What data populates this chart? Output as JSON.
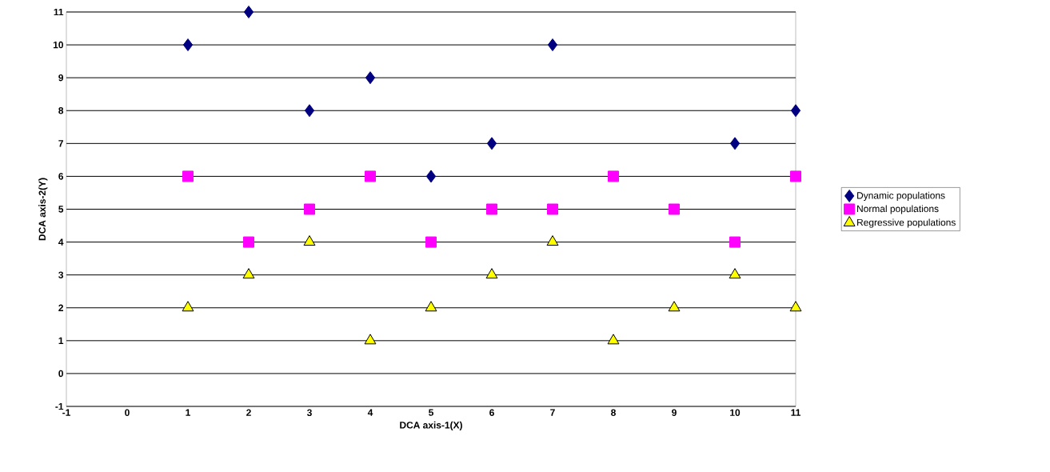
{
  "chart_data": {
    "type": "scatter",
    "xlabel": "DCA axis-1(X)",
    "ylabel": "DCA axis-2(Y)",
    "xlim": [
      -1,
      11
    ],
    "ylim": [
      -1,
      11
    ],
    "xticks": [
      -1,
      0,
      1,
      2,
      3,
      4,
      5,
      6,
      7,
      8,
      9,
      10,
      11
    ],
    "yticks": [
      -1,
      0,
      1,
      2,
      3,
      4,
      5,
      6,
      7,
      8,
      9,
      10,
      11
    ],
    "grid": "y",
    "legend": "right",
    "series": [
      {
        "name": "Dynamic populations",
        "color": "#000080",
        "marker": "diamond",
        "x": [
          1,
          2,
          3,
          4,
          5,
          6,
          7,
          10,
          11
        ],
        "values": [
          10,
          11,
          8,
          9,
          6,
          7,
          10,
          7,
          8
        ]
      },
      {
        "name": "Normal populations",
        "color": "#ff00ff",
        "marker": "square",
        "x": [
          1,
          2,
          3,
          4,
          5,
          6,
          7,
          8,
          9,
          10,
          11
        ],
        "values": [
          6,
          4,
          5,
          6,
          4,
          5,
          5,
          6,
          5,
          4,
          6
        ]
      },
      {
        "name": "Regressive populations",
        "color": "#ffff00",
        "marker": "triangle",
        "x": [
          1,
          2,
          3,
          4,
          5,
          6,
          7,
          8,
          9,
          10,
          11
        ],
        "values": [
          2,
          3,
          4,
          1,
          2,
          3,
          4,
          1,
          2,
          3,
          2
        ]
      }
    ]
  }
}
